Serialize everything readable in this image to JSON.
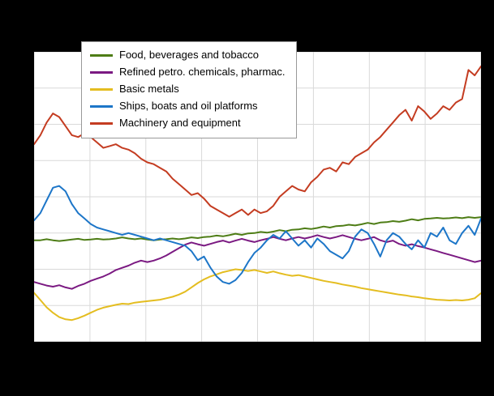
{
  "page": {
    "background": "#000000"
  },
  "chart_data": {
    "type": "line",
    "title": "",
    "plot_background": "#ffffff",
    "ylim": [
      60,
      140
    ],
    "x_axis": {
      "tick_labels_visible": false,
      "points": 72
    },
    "y_axis": {
      "tick_labels_visible": false
    },
    "grid": {
      "show": true,
      "color": "#d9d9d9",
      "x_divisions": 8,
      "y_divisions": 8
    },
    "legend": {
      "position": "top-left",
      "background": "#ffffff",
      "border_color": "#9a9a9a"
    },
    "series": [
      {
        "id": "food-beverages-tobacco",
        "name": "Food, beverages and tobacco",
        "color": "#4e7d16",
        "values": [
          88,
          88,
          88.3,
          88,
          87.8,
          88,
          88.2,
          88.4,
          88.1,
          88.2,
          88.4,
          88.2,
          88.3,
          88.5,
          88.8,
          88.5,
          88.3,
          88.5,
          88.2,
          88,
          88.2,
          88.3,
          88.5,
          88.3,
          88.5,
          88.8,
          88.6,
          88.9,
          89,
          89.3,
          89.1,
          89.4,
          89.8,
          89.5,
          89.9,
          90,
          90.3,
          90.1,
          90.4,
          90.8,
          90.5,
          90.9,
          91,
          91.3,
          91.1,
          91.4,
          91.8,
          91.5,
          91.9,
          92,
          92.3,
          92.1,
          92.4,
          92.8,
          92.5,
          92.9,
          93,
          93.3,
          93.1,
          93.4,
          93.8,
          93.5,
          93.9,
          94,
          94.2,
          94,
          94.1,
          94.3,
          94.1,
          94.4,
          94.2,
          94.4
        ]
      },
      {
        "id": "refined-petro-chemicals-pharmac",
        "name": "Refined petro. chemicals, pharmac.",
        "color": "#7b1a82",
        "values": [
          76.5,
          76,
          75.5,
          75.2,
          75.6,
          75,
          74.6,
          75.4,
          76,
          76.8,
          77.4,
          78,
          78.8,
          79.8,
          80.4,
          81,
          81.8,
          82.4,
          82,
          82.4,
          83,
          83.8,
          84.8,
          85.8,
          86.8,
          87.4,
          86.9,
          86.5,
          87,
          87.5,
          87.9,
          87.4,
          87.9,
          88.4,
          87.9,
          87.5,
          88,
          88.4,
          88.9,
          88.4,
          88,
          88.5,
          88.9,
          88.5,
          88.9,
          89.4,
          88.9,
          88.5,
          88.9,
          89.4,
          88.9,
          88.4,
          88,
          88.4,
          88.9,
          88,
          87.5,
          87.9,
          87,
          86.5,
          86.9,
          86.4,
          86,
          85.5,
          85,
          84.5,
          84,
          83.5,
          83,
          82.5,
          82,
          82.4
        ]
      },
      {
        "id": "basic-metals",
        "name": "Basic metals",
        "color": "#e4bd20",
        "values": [
          73.5,
          71.5,
          69.5,
          68,
          66.8,
          66.2,
          66,
          66.5,
          67.2,
          68,
          68.8,
          69.4,
          69.8,
          70.2,
          70.5,
          70.4,
          70.8,
          71,
          71.2,
          71.4,
          71.6,
          72,
          72.4,
          73,
          73.8,
          75,
          76.2,
          77.2,
          78,
          78.6,
          79.2,
          79.6,
          80,
          79.8,
          79.5,
          79.8,
          79.4,
          79,
          79.4,
          78.9,
          78.5,
          78.2,
          78.4,
          78,
          77.6,
          77.2,
          76.8,
          76.5,
          76.2,
          75.8,
          75.5,
          75.2,
          74.8,
          74.5,
          74.2,
          73.9,
          73.6,
          73.3,
          73,
          72.8,
          72.5,
          72.3,
          72,
          71.8,
          71.6,
          71.5,
          71.4,
          71.5,
          71.4,
          71.6,
          72,
          73.4
        ]
      },
      {
        "id": "ships-boats-oil-platforms",
        "name": "Ships, boats and oil platforms",
        "color": "#1d76c8",
        "values": [
          93.5,
          95.5,
          99,
          102.5,
          103,
          101.5,
          98,
          95.5,
          94,
          92.5,
          91.5,
          91,
          90.5,
          90,
          89.5,
          90,
          89.5,
          89,
          88.5,
          88,
          88.5,
          88,
          87.5,
          87,
          86.5,
          85,
          82.5,
          83.5,
          80.5,
          78,
          76.5,
          76,
          77,
          79,
          82,
          84.5,
          86,
          88,
          89.5,
          88.5,
          90.5,
          88.5,
          86.5,
          88,
          86,
          88.5,
          87,
          85,
          84,
          83,
          85,
          89,
          91,
          90,
          87,
          83.5,
          88,
          90,
          89,
          87,
          85.5,
          88,
          86,
          90,
          89,
          91.5,
          88,
          87,
          90,
          92,
          89.5,
          94
        ]
      },
      {
        "id": "machinery-and-equipment",
        "name": "Machinery and equipment",
        "color": "#c43c21",
        "values": [
          114.5,
          117,
          120.5,
          123,
          122,
          119.5,
          117,
          116.5,
          117.5,
          116.5,
          115,
          113.5,
          114,
          114.5,
          113.5,
          113,
          112,
          110.5,
          109.5,
          109,
          108,
          107,
          105,
          103.5,
          102,
          100.5,
          101,
          99.5,
          97.5,
          96.5,
          95.5,
          94.5,
          95.5,
          96.5,
          95,
          96.5,
          95.5,
          96,
          97.5,
          100,
          101.5,
          103,
          102,
          101.5,
          104,
          105.5,
          107.5,
          108,
          107,
          109.5,
          109,
          111,
          112,
          113,
          115,
          116.5,
          118.5,
          120.5,
          122.5,
          124,
          121,
          125,
          123.5,
          121.5,
          123,
          125,
          124,
          126,
          127,
          135,
          133.5,
          136
        ]
      }
    ]
  }
}
